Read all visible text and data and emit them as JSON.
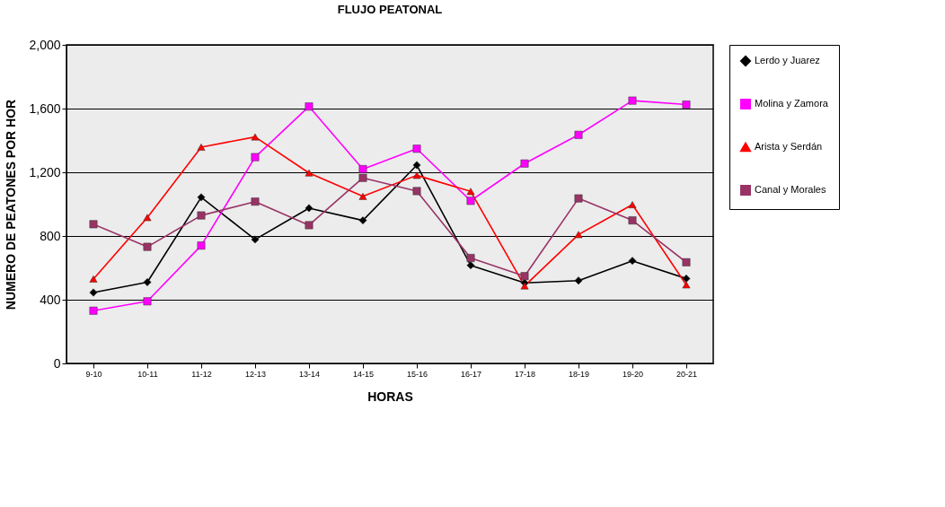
{
  "chart_data": {
    "type": "line",
    "title": "FLUJO PEATONAL",
    "xlabel": "HORAS",
    "ylabel": "NUMERO DE PEATONES POR HOR",
    "categories": [
      "9-10",
      "10-11",
      "11-12",
      "12-13",
      "13-14",
      "14-15",
      "15-16",
      "16-17",
      "17-18",
      "18-19",
      "19-20",
      "20-21"
    ],
    "series": [
      {
        "name": "Lerdo y Juarez",
        "color": "#000000",
        "marker": "diamond",
        "values": [
          445,
          510,
          1043,
          778,
          975,
          898,
          1245,
          616,
          506,
          520,
          644,
          533
        ]
      },
      {
        "name": "Molina y Zamora",
        "color": "#ff00ff",
        "marker": "square",
        "values": [
          331,
          390,
          740,
          1295,
          1613,
          1220,
          1348,
          1021,
          1255,
          1435,
          1650,
          1625
        ]
      },
      {
        "name": "Arista y Serdán",
        "color": "#ff0000",
        "marker": "triangle",
        "values": [
          530,
          916,
          1358,
          1422,
          1196,
          1049,
          1181,
          1080,
          487,
          809,
          997,
          493
        ]
      },
      {
        "name": "Canal y Morales",
        "color": "#993366",
        "marker": "square",
        "values": [
          874,
          732,
          929,
          1016,
          868,
          1165,
          1082,
          662,
          548,
          1036,
          898,
          635
        ]
      }
    ],
    "ylim": [
      0,
      2000
    ],
    "yticks": [
      0,
      400,
      800,
      {
        "value": 1200,
        "label": "1,200"
      },
      {
        "value": 1600,
        "label": "1,600"
      },
      {
        "value": 2000,
        "label": "2,000"
      }
    ],
    "grid": "y",
    "legend": "right",
    "line_style": "solid"
  }
}
